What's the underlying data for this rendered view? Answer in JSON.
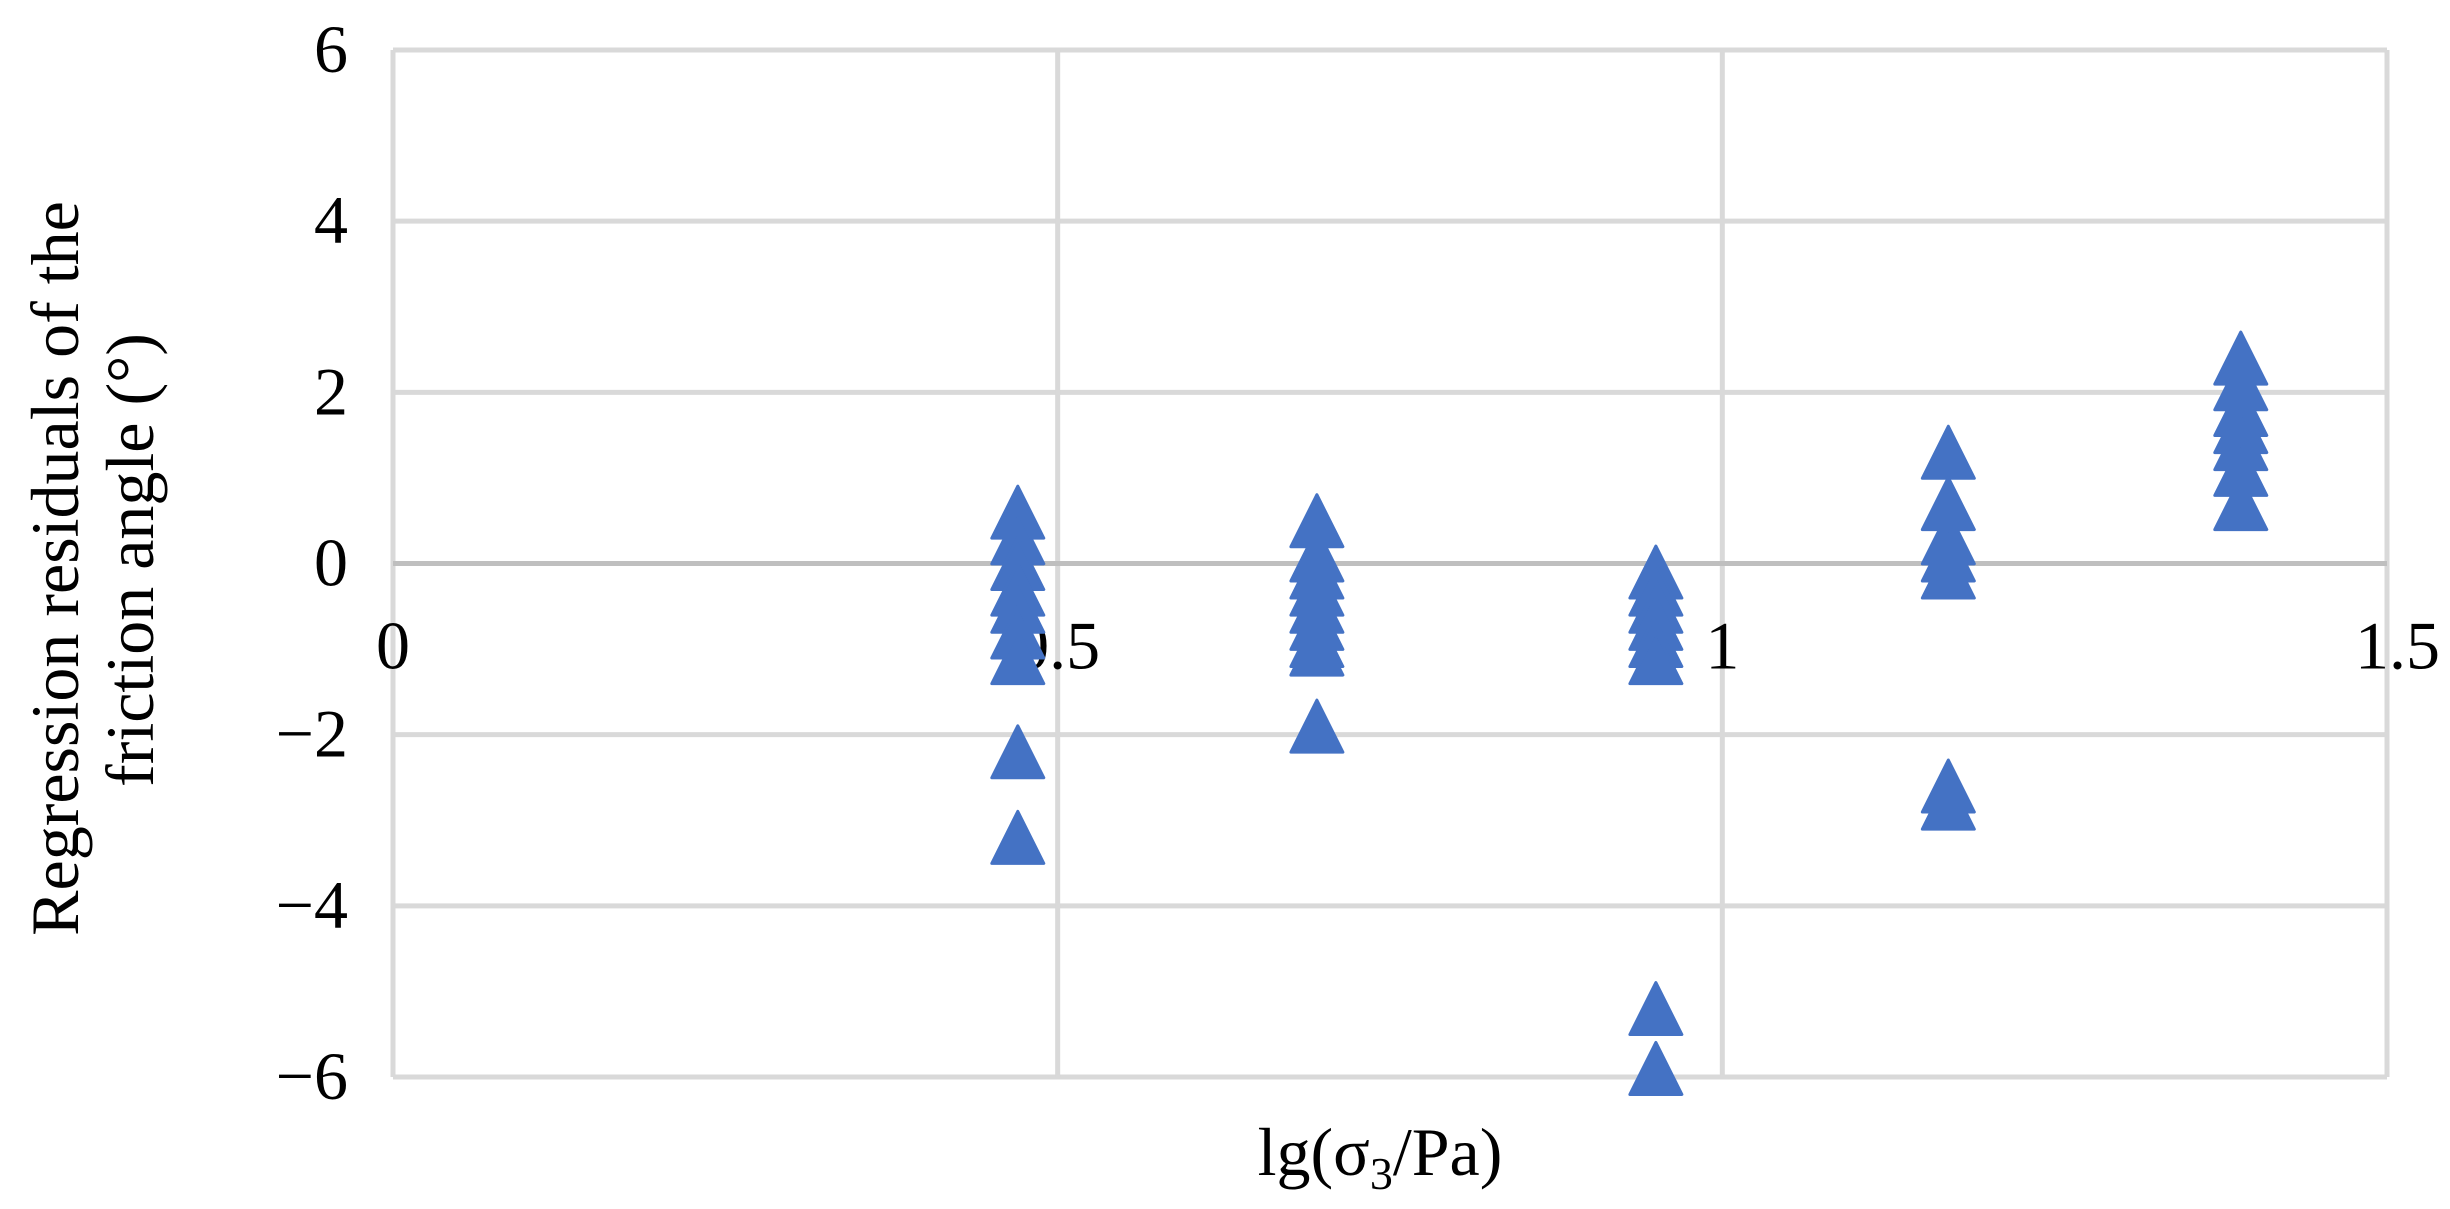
{
  "chart_data": {
    "type": "scatter",
    "title": "",
    "xlabel": "lg(σ3/Pa)",
    "xlabel_parts": {
      "prefix": "lg(σ",
      "subscript": "3",
      "suffix": "/Pa)"
    },
    "ylabel": "Regression residuals of the friction angle (°)",
    "ylabel_lines": [
      "Regression residuals of the",
      "friction angle (°)"
    ],
    "xlim": [
      0,
      1.5
    ],
    "ylim": [
      -6,
      6
    ],
    "x_ticks": [
      0,
      0.5,
      1,
      1.5
    ],
    "x_tick_labels": [
      "0",
      "0.5",
      "1",
      "1.5"
    ],
    "y_ticks": [
      -6,
      -4,
      -2,
      0,
      2,
      4,
      6
    ],
    "y_tick_labels": [
      "−6",
      "−4",
      "−2",
      "0",
      "2",
      "4",
      "6"
    ],
    "grid": true,
    "legend": "none",
    "marker": "triangle",
    "colors": {
      "marker": "#4472C4",
      "grid": "#D9D9D9",
      "zero_line": "#BFBFBF"
    },
    "series": [
      {
        "points": [
          {
            "x": 0.47,
            "y": 0.6
          },
          {
            "x": 0.47,
            "y": 0.3
          },
          {
            "x": 0.47,
            "y": 0.0
          },
          {
            "x": 0.47,
            "y": -0.3
          },
          {
            "x": 0.47,
            "y": -0.5
          },
          {
            "x": 0.47,
            "y": -0.8
          },
          {
            "x": 0.47,
            "y": -1.1
          },
          {
            "x": 0.47,
            "y": -2.2
          },
          {
            "x": 0.47,
            "y": -3.2
          },
          {
            "x": 0.695,
            "y": 0.5
          },
          {
            "x": 0.695,
            "y": 0.1
          },
          {
            "x": 0.695,
            "y": -0.1
          },
          {
            "x": 0.695,
            "y": -0.3
          },
          {
            "x": 0.695,
            "y": -0.5
          },
          {
            "x": 0.695,
            "y": -0.7
          },
          {
            "x": 0.695,
            "y": -0.9
          },
          {
            "x": 0.695,
            "y": -1.0
          },
          {
            "x": 0.695,
            "y": -1.9
          },
          {
            "x": 0.95,
            "y": -0.1
          },
          {
            "x": 0.95,
            "y": -0.3
          },
          {
            "x": 0.95,
            "y": -0.5
          },
          {
            "x": 0.95,
            "y": -0.7
          },
          {
            "x": 0.95,
            "y": -0.9
          },
          {
            "x": 0.95,
            "y": -1.1
          },
          {
            "x": 0.95,
            "y": -5.2
          },
          {
            "x": 0.95,
            "y": -5.9
          },
          {
            "x": 1.17,
            "y": 1.3
          },
          {
            "x": 1.17,
            "y": 0.7
          },
          {
            "x": 1.17,
            "y": 0.3
          },
          {
            "x": 1.17,
            "y": 0.1
          },
          {
            "x": 1.17,
            "y": -0.1
          },
          {
            "x": 1.17,
            "y": -2.6
          },
          {
            "x": 1.17,
            "y": -2.8
          },
          {
            "x": 1.39,
            "y": 2.4
          },
          {
            "x": 1.39,
            "y": 2.1
          },
          {
            "x": 1.39,
            "y": 1.8
          },
          {
            "x": 1.39,
            "y": 1.6
          },
          {
            "x": 1.39,
            "y": 1.4
          },
          {
            "x": 1.39,
            "y": 1.1
          },
          {
            "x": 1.39,
            "y": 0.7
          }
        ]
      }
    ]
  }
}
